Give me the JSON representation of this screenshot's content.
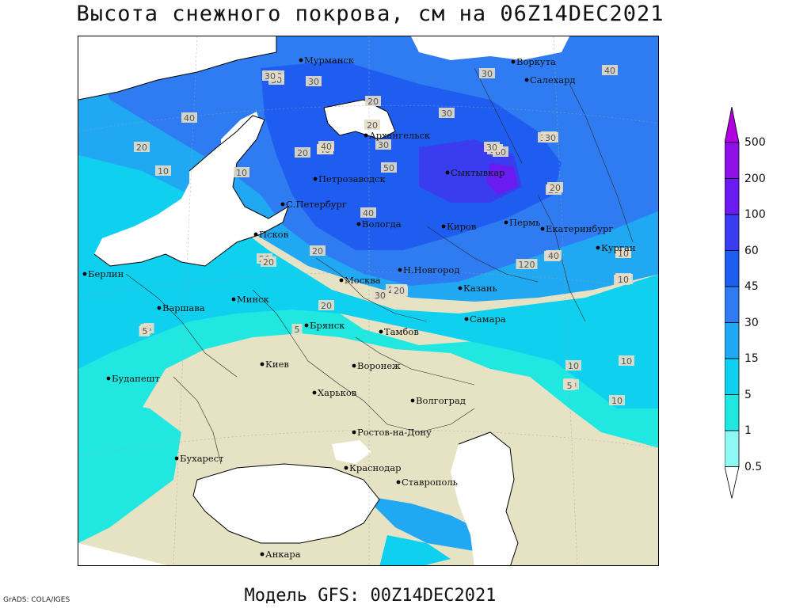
{
  "title": "Высота снежного покрова, см на 06Z14DEC2021",
  "footer": {
    "model": "Модель GFS: 00Z14DEC2021",
    "credit": "GrADS: COLA/IGES"
  },
  "legend": {
    "levels": [
      {
        "label": "500",
        "color": "#b000e0"
      },
      {
        "label": "200",
        "color": "#9010e8"
      },
      {
        "label": "100",
        "color": "#6a1cf0"
      },
      {
        "label": "60",
        "color": "#3a3cf0"
      },
      {
        "label": "45",
        "color": "#1f5cf0"
      },
      {
        "label": "30",
        "color": "#2f7cf2"
      },
      {
        "label": "15",
        "color": "#20a8f2"
      },
      {
        "label": "5",
        "color": "#10d0f0"
      },
      {
        "label": "1",
        "color": "#20e8e0"
      },
      {
        "label": "0.5",
        "color": "#90f8f4"
      }
    ],
    "land_color": "#e6e2c4",
    "sea_color": "#ffffff"
  },
  "cities": [
    {
      "name": "Мурманск"
    },
    {
      "name": "Воркута"
    },
    {
      "name": "Салехард"
    },
    {
      "name": "Архангельск"
    },
    {
      "name": "Сыктывкар"
    },
    {
      "name": "Петрозаводск"
    },
    {
      "name": "С.Петербург"
    },
    {
      "name": "Вологда"
    },
    {
      "name": "Киров"
    },
    {
      "name": "Пермь"
    },
    {
      "name": "Екатеринбург"
    },
    {
      "name": "Курган"
    },
    {
      "name": "Псков"
    },
    {
      "name": "Н.Новгород"
    },
    {
      "name": "Казань"
    },
    {
      "name": "Москва"
    },
    {
      "name": "Берлин"
    },
    {
      "name": "Варшава"
    },
    {
      "name": "Минск"
    },
    {
      "name": "Брянск"
    },
    {
      "name": "Тамбов"
    },
    {
      "name": "Самара"
    },
    {
      "name": "Киев"
    },
    {
      "name": "Воронеж"
    },
    {
      "name": "Будапешт"
    },
    {
      "name": "Харьков"
    },
    {
      "name": "Волгоград"
    },
    {
      "name": "Ростов-на-Дону"
    },
    {
      "name": "Бухарест"
    },
    {
      "name": "Краснодар"
    },
    {
      "name": "Ставрополь"
    },
    {
      "name": "Анкара"
    }
  ],
  "contour_labels": [
    "30",
    "30",
    "30",
    "30",
    "20",
    "30",
    "30",
    "20",
    "20",
    "40",
    "30",
    "20",
    "10",
    "40",
    "40",
    "30",
    "20",
    "30",
    "60",
    "60",
    "30",
    "40",
    "20",
    "30",
    "10",
    "40",
    "50",
    "30",
    "10",
    "20",
    "20",
    "20",
    "10",
    "20",
    "5",
    "5",
    "30",
    "10",
    "10",
    "20",
    "40",
    "20",
    "10",
    "5",
    "10",
    "20",
    "30",
    "120",
    "40",
    "10",
    "5",
    "10",
    "5",
    "10",
    "20",
    "5",
    "5",
    "10",
    "5"
  ]
}
